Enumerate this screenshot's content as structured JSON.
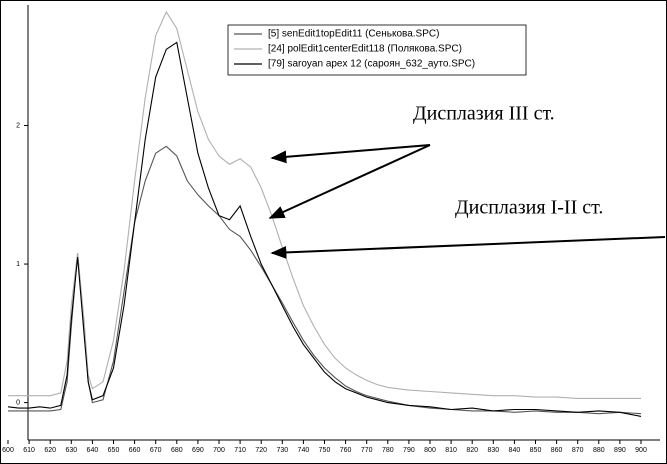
{
  "chart_data": {
    "type": "line",
    "x": [
      600,
      605,
      610,
      615,
      620,
      625,
      628,
      630,
      633,
      636,
      638,
      640,
      645,
      650,
      655,
      660,
      665,
      670,
      675,
      680,
      685,
      690,
      695,
      700,
      705,
      710,
      715,
      720,
      725,
      730,
      735,
      740,
      745,
      750,
      755,
      760,
      765,
      770,
      775,
      780,
      790,
      800,
      810,
      820,
      830,
      840,
      850,
      860,
      870,
      880,
      890,
      900
    ],
    "series": [
      {
        "name": "[5] senEdit1topEdit11 (Сенькова.SPC)",
        "color": "#555555",
        "values": [
          -0.06,
          -0.06,
          -0.06,
          -0.06,
          -0.06,
          -0.05,
          0.15,
          0.55,
          1.08,
          0.55,
          0.15,
          0,
          0.02,
          0.3,
          0.8,
          1.3,
          1.6,
          1.8,
          1.85,
          1.78,
          1.6,
          1.5,
          1.42,
          1.35,
          1.25,
          1.2,
          1.1,
          0.98,
          0.85,
          0.72,
          0.58,
          0.45,
          0.34,
          0.25,
          0.18,
          0.12,
          0.08,
          0.05,
          0.03,
          0.01,
          -0.02,
          -0.04,
          -0.05,
          -0.06,
          -0.06,
          -0.07,
          -0.06,
          -0.07,
          -0.07,
          -0.08,
          -0.07,
          -0.08
        ]
      },
      {
        "name": "[24] polEdit1centerEdit118 (Полякова.SPC)",
        "color": "#b0b0b0",
        "values": [
          0.05,
          0.05,
          0.05,
          0.05,
          0.05,
          0.07,
          0.3,
          0.7,
          1.08,
          0.6,
          0.2,
          0.1,
          0.15,
          0.45,
          0.95,
          1.6,
          2.2,
          2.65,
          2.82,
          2.7,
          2.4,
          2.1,
          1.9,
          1.78,
          1.72,
          1.76,
          1.7,
          1.55,
          1.35,
          1.12,
          0.9,
          0.7,
          0.55,
          0.42,
          0.32,
          0.25,
          0.2,
          0.16,
          0.13,
          0.11,
          0.09,
          0.08,
          0.07,
          0.06,
          0.05,
          0.05,
          0.04,
          0.04,
          0.03,
          0.03,
          0.03,
          0.03
        ]
      },
      {
        "name": "[79] saroyan apex 12 (сароян_632_ауто.SPC)",
        "color": "#000000",
        "values": [
          -0.03,
          -0.04,
          -0.04,
          -0.03,
          -0.04,
          -0.02,
          0.2,
          0.6,
          1.05,
          0.5,
          0.15,
          0.02,
          0.05,
          0.25,
          0.7,
          1.3,
          1.9,
          2.35,
          2.55,
          2.6,
          2.2,
          1.8,
          1.55,
          1.35,
          1.32,
          1.42,
          1.2,
          1.0,
          0.85,
          0.7,
          0.55,
          0.42,
          0.32,
          0.22,
          0.15,
          0.1,
          0.07,
          0.04,
          0.02,
          0,
          -0.02,
          -0.03,
          -0.05,
          -0.04,
          -0.06,
          -0.05,
          -0.05,
          -0.06,
          -0.07,
          -0.06,
          -0.07,
          -0.1
        ]
      }
    ],
    "xlim": [
      600,
      900
    ],
    "ylim": [
      -0.27,
      2.87
    ],
    "xticks": [
      600,
      610,
      620,
      630,
      640,
      650,
      660,
      670,
      680,
      690,
      700,
      710,
      720,
      730,
      740,
      750,
      760,
      770,
      780,
      790,
      800,
      810,
      820,
      830,
      840,
      850,
      860,
      870,
      880,
      890,
      900
    ],
    "yticks": [
      0,
      1,
      2
    ],
    "annotations": [
      "Дисплазия III ст.",
      "Дисплазия I-II ст."
    ]
  }
}
